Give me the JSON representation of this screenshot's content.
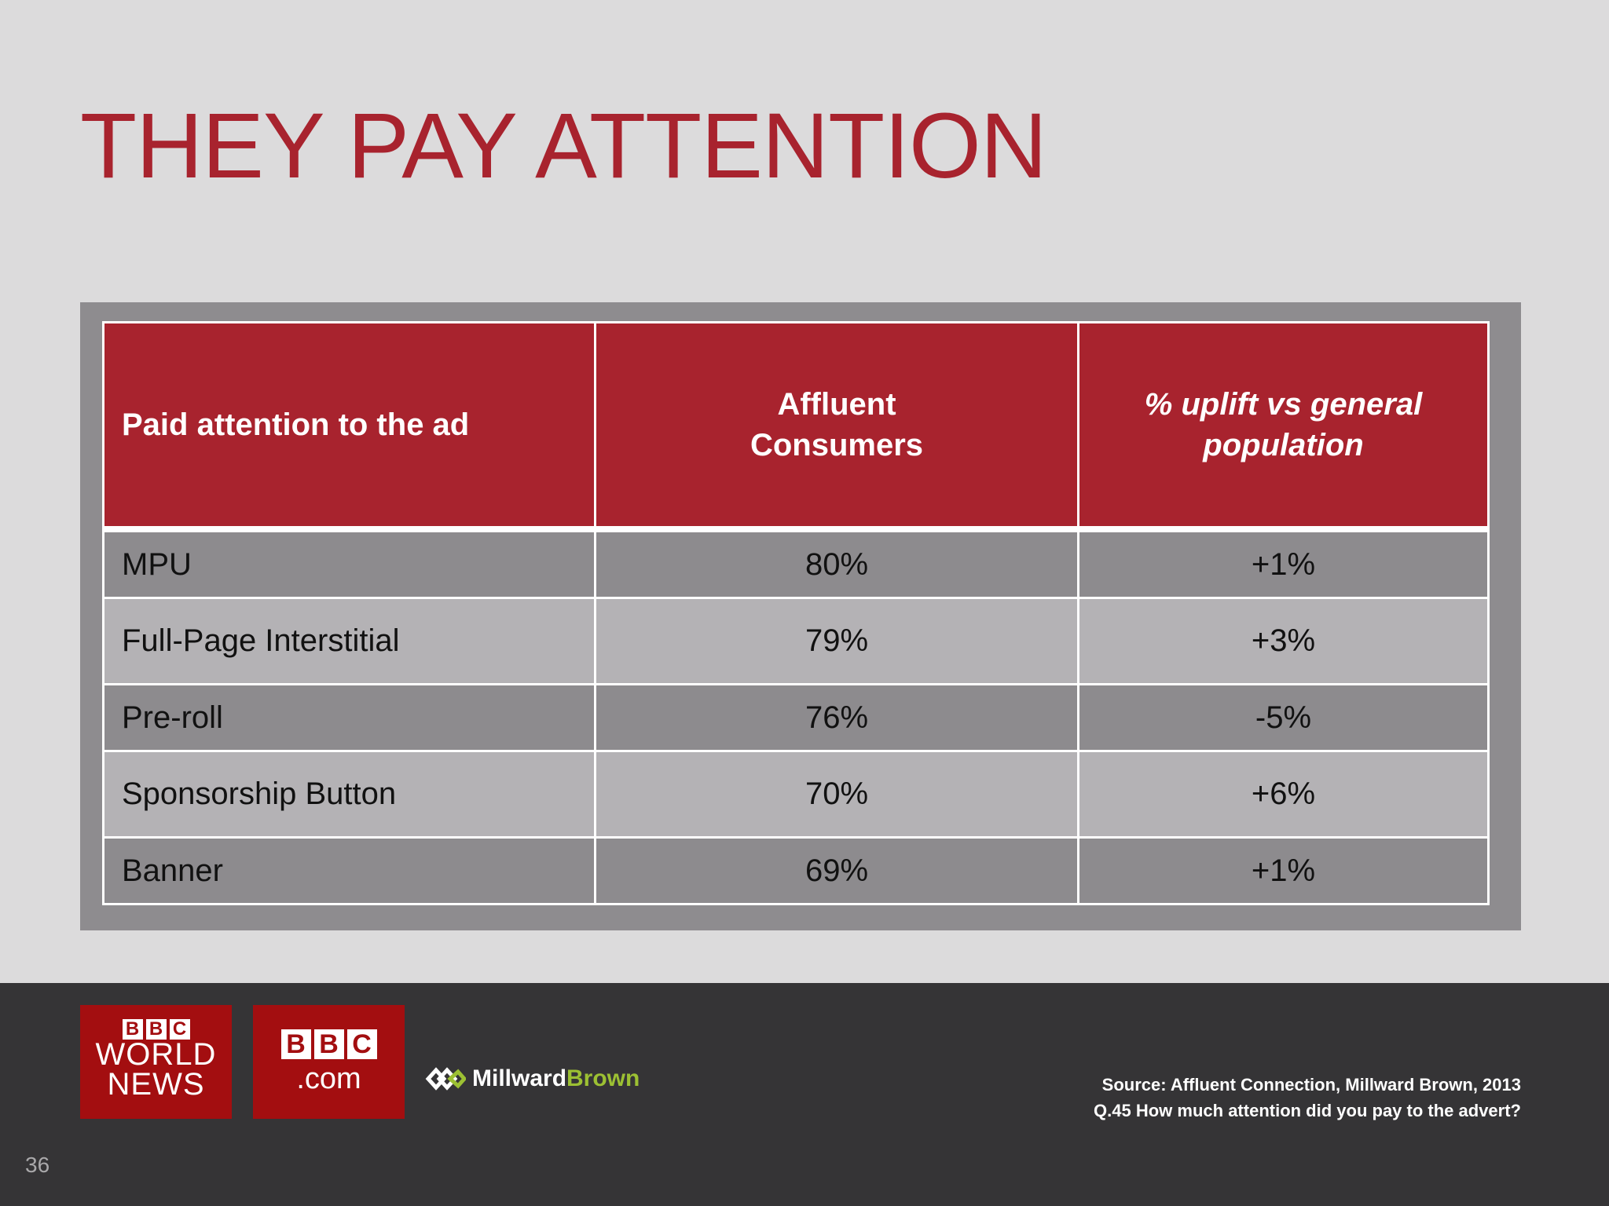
{
  "slide": {
    "title": "THEY PAY ATTENTION",
    "page_number": "36"
  },
  "table": {
    "headers": [
      "Paid attention to the ad",
      "Affluent Consumers",
      "% uplift vs general population"
    ],
    "rows": [
      {
        "label": "MPU",
        "affluent": "80%",
        "uplift": "+1%"
      },
      {
        "label": "Full-Page Interstitial",
        "affluent": "79%",
        "uplift": "+3%"
      },
      {
        "label": "Pre-roll",
        "affluent": "76%",
        "uplift": "-5%"
      },
      {
        "label": "Sponsorship Button",
        "affluent": "70%",
        "uplift": "+6%"
      },
      {
        "label": "Banner",
        "affluent": "69%",
        "uplift": "+1%"
      }
    ]
  },
  "footer": {
    "logo1": {
      "bbc": [
        "B",
        "B",
        "C"
      ],
      "line1": "WORLD",
      "line2": "NEWS"
    },
    "logo2": {
      "bbc": [
        "B",
        "B",
        "C"
      ],
      "line1": ".com"
    },
    "millward_brown": {
      "part1": "Millward",
      "part2": "Brown"
    },
    "source_line1": "Source:  Affluent Connection, Millward Brown, 2013",
    "source_line2": "Q.45 How much attention did you pay to the advert?"
  },
  "colors": {
    "accent_red": "#a8232e",
    "bbc_red": "#a30e10",
    "footer_bg": "#353436",
    "mb_green": "#9cc033"
  }
}
